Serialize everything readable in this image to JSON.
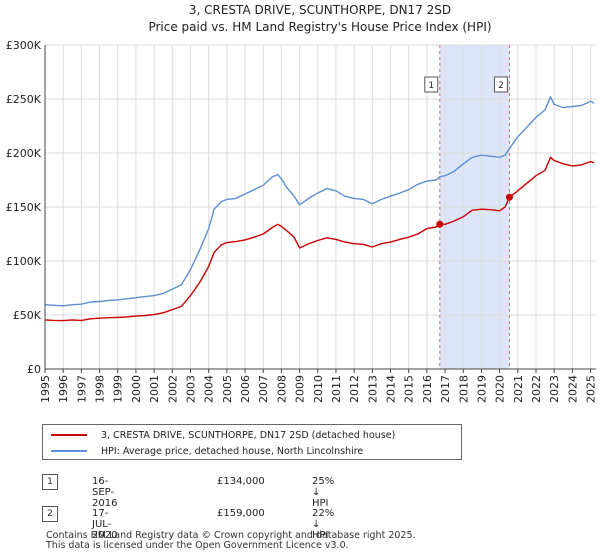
{
  "title_line1": "3, CRESTA DRIVE, SCUNTHORPE, DN17 2SD",
  "title_line2": "Price paid vs. HM Land Registry's House Price Index (HPI)",
  "chart_data": {
    "type": "line",
    "title": "3, CRESTA DRIVE, SCUNTHORPE, DN17 2SD — Price paid vs. HM Land Registry's House Price Index (HPI)",
    "xlabel": "",
    "ylabel": "",
    "xlim": [
      1995.0,
      2025.3
    ],
    "ylim": [
      0,
      300000
    ],
    "y_ticks": [
      {
        "value": 0,
        "label": "£0"
      },
      {
        "value": 50000,
        "label": "£50K"
      },
      {
        "value": 100000,
        "label": "£100K"
      },
      {
        "value": 150000,
        "label": "£150K"
      },
      {
        "value": 200000,
        "label": "£200K"
      },
      {
        "value": 250000,
        "label": "£250K"
      },
      {
        "value": 300000,
        "label": "£300K"
      }
    ],
    "x_ticks": [
      "1995",
      "1996",
      "1997",
      "1998",
      "1999",
      "2000",
      "2001",
      "2002",
      "2003",
      "2004",
      "2005",
      "2006",
      "2007",
      "2008",
      "2009",
      "2010",
      "2011",
      "2012",
      "2013",
      "2014",
      "2015",
      "2016",
      "2017",
      "2018",
      "2019",
      "2020",
      "2021",
      "2022",
      "2023",
      "2024",
      "2025"
    ],
    "grid": true,
    "shaded_region": {
      "from": 2016.71,
      "to": 2020.54,
      "color": "#dde6f8"
    },
    "series": [
      {
        "name": "3, CRESTA DRIVE, SCUNTHORPE, DN17 2SD (detached house)",
        "color": "#cc0000",
        "points": [
          [
            1995.0,
            45500
          ],
          [
            1995.5,
            45000
          ],
          [
            1996.0,
            44800
          ],
          [
            1996.5,
            45500
          ],
          [
            1997.0,
            45000
          ],
          [
            1997.5,
            46500
          ],
          [
            1998.0,
            47000
          ],
          [
            1998.5,
            47500
          ],
          [
            1999.0,
            47800
          ],
          [
            1999.5,
            48200
          ],
          [
            2000.0,
            49000
          ],
          [
            2000.5,
            49500
          ],
          [
            2001.0,
            50500
          ],
          [
            2001.5,
            52000
          ],
          [
            2002.0,
            55000
          ],
          [
            2002.5,
            58000
          ],
          [
            2003.0,
            68000
          ],
          [
            2003.5,
            80000
          ],
          [
            2004.0,
            95000
          ],
          [
            2004.3,
            108000
          ],
          [
            2004.7,
            115000
          ],
          [
            2005.0,
            117000
          ],
          [
            2005.5,
            118000
          ],
          [
            2006.0,
            119500
          ],
          [
            2006.5,
            122000
          ],
          [
            2007.0,
            125000
          ],
          [
            2007.5,
            131000
          ],
          [
            2007.8,
            134000
          ],
          [
            2008.0,
            132000
          ],
          [
            2008.3,
            128000
          ],
          [
            2008.7,
            122000
          ],
          [
            2009.0,
            112000
          ],
          [
            2009.5,
            116000
          ],
          [
            2010.0,
            119000
          ],
          [
            2010.5,
            121500
          ],
          [
            2011.0,
            120000
          ],
          [
            2011.5,
            117500
          ],
          [
            2012.0,
            116000
          ],
          [
            2012.5,
            115500
          ],
          [
            2013.0,
            113000
          ],
          [
            2013.5,
            116000
          ],
          [
            2014.0,
            117500
          ],
          [
            2014.5,
            120000
          ],
          [
            2015.0,
            122000
          ],
          [
            2015.5,
            125000
          ],
          [
            2016.0,
            130000
          ],
          [
            2016.5,
            131500
          ],
          [
            2016.71,
            134000
          ],
          [
            2017.0,
            134000
          ],
          [
            2017.5,
            137000
          ],
          [
            2018.0,
            141000
          ],
          [
            2018.5,
            147000
          ],
          [
            2019.0,
            148000
          ],
          [
            2019.5,
            147500
          ],
          [
            2020.0,
            146500
          ],
          [
            2020.3,
            150000
          ],
          [
            2020.54,
            159000
          ],
          [
            2021.0,
            165000
          ],
          [
            2021.5,
            172000
          ],
          [
            2022.0,
            179000
          ],
          [
            2022.5,
            184000
          ],
          [
            2022.8,
            196000
          ],
          [
            2023.0,
            193000
          ],
          [
            2023.5,
            190000
          ],
          [
            2024.0,
            188000
          ],
          [
            2024.5,
            189000
          ],
          [
            2025.0,
            192000
          ],
          [
            2025.2,
            191000
          ]
        ]
      },
      {
        "name": "HPI: Average price, detached house, North Lincolnshire",
        "color": "#5b8fd6",
        "points": [
          [
            1995.0,
            59500
          ],
          [
            1995.5,
            59000
          ],
          [
            1996.0,
            58500
          ],
          [
            1996.5,
            59500
          ],
          [
            1997.0,
            60000
          ],
          [
            1997.5,
            62000
          ],
          [
            1998.0,
            62500
          ],
          [
            1998.5,
            63500
          ],
          [
            1999.0,
            64000
          ],
          [
            1999.5,
            65000
          ],
          [
            2000.0,
            66000
          ],
          [
            2000.5,
            67000
          ],
          [
            2001.0,
            68000
          ],
          [
            2001.5,
            70000
          ],
          [
            2002.0,
            74000
          ],
          [
            2002.5,
            78000
          ],
          [
            2003.0,
            92000
          ],
          [
            2003.5,
            110000
          ],
          [
            2004.0,
            130000
          ],
          [
            2004.3,
            148000
          ],
          [
            2004.7,
            155000
          ],
          [
            2005.0,
            157000
          ],
          [
            2005.5,
            158000
          ],
          [
            2006.0,
            162000
          ],
          [
            2006.5,
            166000
          ],
          [
            2007.0,
            170000
          ],
          [
            2007.5,
            178000
          ],
          [
            2007.8,
            180000
          ],
          [
            2008.0,
            176000
          ],
          [
            2008.3,
            168000
          ],
          [
            2008.7,
            160000
          ],
          [
            2009.0,
            152000
          ],
          [
            2009.5,
            158000
          ],
          [
            2010.0,
            163000
          ],
          [
            2010.5,
            167000
          ],
          [
            2011.0,
            165000
          ],
          [
            2011.5,
            160000
          ],
          [
            2012.0,
            158000
          ],
          [
            2012.5,
            157000
          ],
          [
            2013.0,
            153000
          ],
          [
            2013.5,
            157000
          ],
          [
            2014.0,
            160000
          ],
          [
            2014.5,
            163000
          ],
          [
            2015.0,
            166000
          ],
          [
            2015.5,
            171000
          ],
          [
            2016.0,
            174000
          ],
          [
            2016.5,
            175000
          ],
          [
            2016.71,
            178000
          ],
          [
            2017.0,
            179000
          ],
          [
            2017.5,
            183000
          ],
          [
            2018.0,
            190000
          ],
          [
            2018.5,
            196000
          ],
          [
            2019.0,
            198000
          ],
          [
            2019.5,
            197000
          ],
          [
            2020.0,
            196000
          ],
          [
            2020.3,
            198000
          ],
          [
            2020.54,
            204000
          ],
          [
            2021.0,
            215000
          ],
          [
            2021.5,
            224000
          ],
          [
            2022.0,
            233000
          ],
          [
            2022.5,
            240000
          ],
          [
            2022.8,
            252000
          ],
          [
            2023.0,
            245000
          ],
          [
            2023.5,
            242000
          ],
          [
            2024.0,
            243000
          ],
          [
            2024.5,
            244000
          ],
          [
            2025.0,
            248000
          ],
          [
            2025.2,
            246000
          ]
        ]
      }
    ],
    "markers": [
      {
        "label": "1",
        "x": 2016.71,
        "y": 134000
      },
      {
        "label": "2",
        "x": 2020.54,
        "y": 159000
      }
    ]
  },
  "legend": {
    "items": [
      {
        "label": "3, CRESTA DRIVE, SCUNTHORPE, DN17 2SD (detached house)",
        "color": "#cc0000"
      },
      {
        "label": "HPI: Average price, detached house, North Lincolnshire",
        "color": "#5b8fd6"
      }
    ]
  },
  "transactions": [
    {
      "num": "1",
      "date": "16-SEP-2016",
      "price": "£134,000",
      "hpi": "25% ↓ HPI"
    },
    {
      "num": "2",
      "date": "17-JUL-2020",
      "price": "£159,000",
      "hpi": "22% ↓ HPI"
    }
  ],
  "footer": {
    "line1": "Contains HM Land Registry data © Crown copyright and database right 2025.",
    "line2": "This data is licensed under the Open Government Licence v3.0."
  }
}
